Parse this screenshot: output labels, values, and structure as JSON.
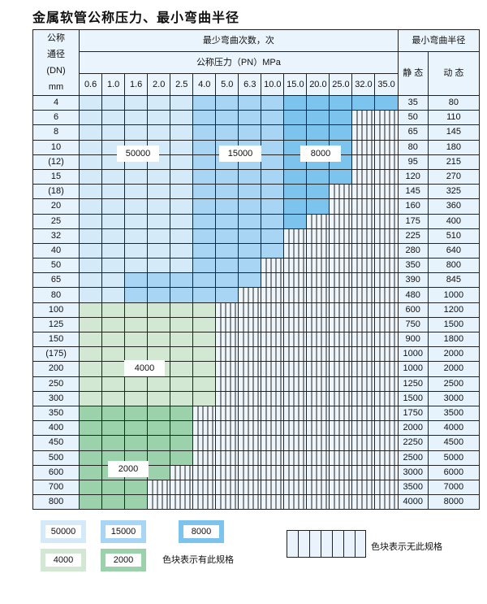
{
  "title": "金属软管公称压力、最小弯曲半径",
  "header": {
    "dn_lines": [
      "公称",
      "通径",
      "(DN)",
      "mm"
    ],
    "cycles": "最少弯曲次数，次",
    "pressure": "公称压力（PN）MPa",
    "pressures": [
      "0.6",
      "1.0",
      "1.6",
      "2.0",
      "2.5",
      "4.0",
      "5.0",
      "6.3",
      "10.0",
      "15.0",
      "20.0",
      "25.0",
      "32.0",
      "35.0"
    ],
    "radius": "最小弯曲半径",
    "static": "静 态",
    "dynamic": "动 态"
  },
  "colors": {
    "50000": "#d4eaf8",
    "15000": "#a8d5f3",
    "8000": "#7cc4ee",
    "4000": "#d2e8d3",
    "2000": "#9bd2ab"
  },
  "rows": [
    {
      "dn": "4",
      "cells": "LLLLLMMMMDDDDD",
      "static": "35",
      "dynamic": "80"
    },
    {
      "dn": "6",
      "cells": "LLLLLMMMMDDDNN",
      "static": "50",
      "dynamic": "110"
    },
    {
      "dn": "8",
      "cells": "LLLLLMMMMDDDNN",
      "static": "65",
      "dynamic": "145"
    },
    {
      "dn": "10",
      "cells": "LLLLLMMMMDDDNN",
      "static": "80",
      "dynamic": "180"
    },
    {
      "dn": "(12)",
      "cells": "LLLLLMMMMDDDNN",
      "static": "95",
      "dynamic": "215"
    },
    {
      "dn": "15",
      "cells": "LLLLLMMMMDDDNN",
      "static": "120",
      "dynamic": "270"
    },
    {
      "dn": "(18)",
      "cells": "LLLLLMMMMDDNNN",
      "static": "145",
      "dynamic": "325"
    },
    {
      "dn": "20",
      "cells": "LLLLLMMMMDDNNN",
      "static": "160",
      "dynamic": "360"
    },
    {
      "dn": "25",
      "cells": "LLLLLMMMMDNNNN",
      "static": "175",
      "dynamic": "400"
    },
    {
      "dn": "32",
      "cells": "LLLLLMMMMNNNNN",
      "static": "225",
      "dynamic": "510"
    },
    {
      "dn": "40",
      "cells": "LLLLLMMMMNNNNN",
      "static": "280",
      "dynamic": "640"
    },
    {
      "dn": "50",
      "cells": "LLLLLMMMNNNNNN",
      "static": "350",
      "dynamic": "800"
    },
    {
      "dn": "65",
      "cells": "LLMMMMMMNNNNNN",
      "static": "390",
      "dynamic": "845"
    },
    {
      "dn": "80",
      "cells": "LLMMMMMNNNNNNN",
      "static": "480",
      "dynamic": "1000"
    },
    {
      "dn": "100",
      "cells": "GGGGGGNNNNNNNN",
      "static": "600",
      "dynamic": "1200"
    },
    {
      "dn": "125",
      "cells": "GGGGGGNNNNNNNN",
      "static": "750",
      "dynamic": "1500"
    },
    {
      "dn": "150",
      "cells": "GGGGGGNNNNNNNN",
      "static": "900",
      "dynamic": "1800"
    },
    {
      "dn": "(175)",
      "cells": "GGGGGGNNNNNNNN",
      "static": "1000",
      "dynamic": "2000"
    },
    {
      "dn": "200",
      "cells": "GGGGGGNNNNNNNN",
      "static": "1000",
      "dynamic": "2000"
    },
    {
      "dn": "250",
      "cells": "GGGGGGNNNNNNNN",
      "static": "1250",
      "dynamic": "2500"
    },
    {
      "dn": "300",
      "cells": "GGGGGGNNNNNNNN",
      "static": "1500",
      "dynamic": "3000"
    },
    {
      "dn": "350",
      "cells": "HHHHHNNNNNNNNN",
      "static": "1750",
      "dynamic": "3500"
    },
    {
      "dn": "400",
      "cells": "HHHHHNNNNNNNNN",
      "static": "2000",
      "dynamic": "4000"
    },
    {
      "dn": "450",
      "cells": "HHHHHNNNNNNNNN",
      "static": "2250",
      "dynamic": "4500"
    },
    {
      "dn": "500",
      "cells": "HHHHHNNNNNNNNN",
      "static": "2500",
      "dynamic": "5000"
    },
    {
      "dn": "600",
      "cells": "HHHHNNNNNNNNNN",
      "static": "3000",
      "dynamic": "6000"
    },
    {
      "dn": "700",
      "cells": "HHHNNNNNNNNNNN",
      "static": "3500",
      "dynamic": "7000"
    },
    {
      "dn": "800",
      "cells": "HHHNNNNNNNNNNN",
      "static": "4000",
      "dynamic": "8000"
    }
  ],
  "region_labels": {
    "l50000": "50000",
    "l15000": "15000",
    "l8000": "8000",
    "l4000": "4000",
    "l2000": "2000"
  },
  "legend": {
    "items": [
      "50000",
      "15000",
      "8000",
      "4000",
      "2000"
    ],
    "has_spec": "色块表示有此规格",
    "no_spec": "色块表示无此规格"
  }
}
